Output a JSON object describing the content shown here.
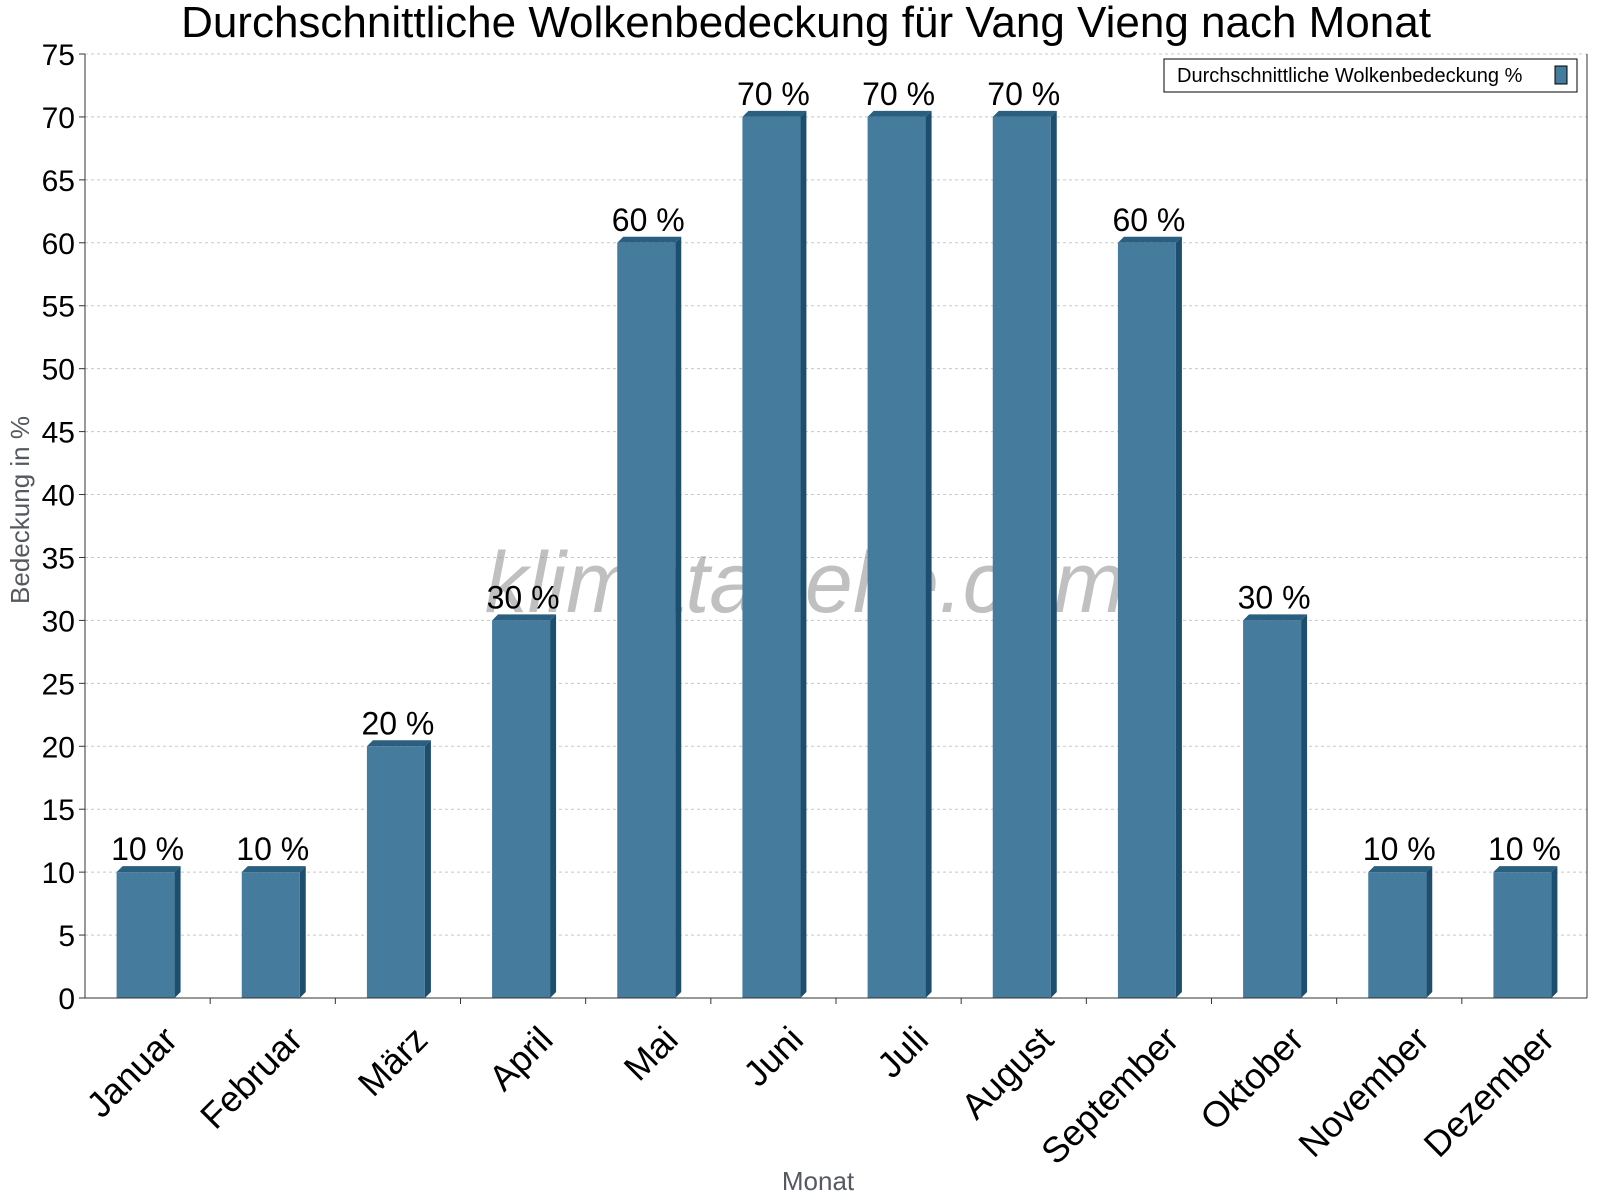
{
  "title": "Durchschnittliche Wolkenbedeckung für Vang Vieng nach Monat",
  "watermark": "klimatabelle.com",
  "colors": {
    "bar_front": "#457b9d",
    "bar_side": "#1d4e6e",
    "bar_top": "#2a5f80",
    "grid": "#c8c8c8",
    "axis": "#333333"
  },
  "chart_data": {
    "type": "bar",
    "title": "Durchschnittliche Wolkenbedeckung für Vang Vieng nach Monat",
    "xlabel": "Monat",
    "ylabel": "Bedeckung in %",
    "ylim": [
      0,
      75
    ],
    "ytick_step": 5,
    "grid": true,
    "legend_position": "top-right",
    "categories": [
      "Januar",
      "Februar",
      "März",
      "April",
      "Mai",
      "Juni",
      "Juli",
      "August",
      "September",
      "Oktober",
      "November",
      "Dezember"
    ],
    "series": [
      {
        "name": "Durchschnittliche Wolkenbedeckung %",
        "values": [
          10,
          10,
          20,
          30,
          60,
          70,
          70,
          70,
          60,
          30,
          10,
          10
        ],
        "labels": [
          "10 %",
          "10 %",
          "20 %",
          "30 %",
          "60 %",
          "70 %",
          "70 %",
          "70 %",
          "60 %",
          "30 %",
          "10 %",
          "10 %"
        ]
      }
    ]
  }
}
